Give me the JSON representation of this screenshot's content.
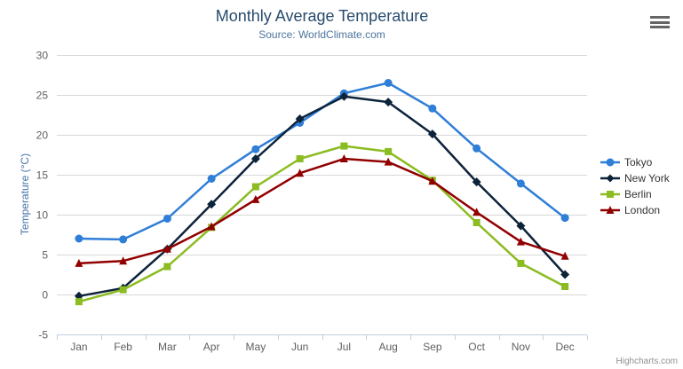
{
  "header": {
    "title": "Monthly Average Temperature",
    "subtitle": "Source: WorldClimate.com"
  },
  "credits": {
    "label": "Highcharts.com"
  },
  "icons": {
    "context_menu": "hamburger-menu-icon"
  },
  "theme": {
    "title_color": "#274b6d",
    "subtitle_color": "#4d759e",
    "axis_label_color": "#606060",
    "y_axis_title_color": "#4572a7",
    "grid_color": "#d8d8d8",
    "axis_line_color": "#c0d0e0",
    "legend_text_color": "#333333",
    "credits_color": "#909090",
    "menu_icon_color": "#666666",
    "background": "#ffffff"
  },
  "chart_data": {
    "type": "line",
    "title": "Monthly Average Temperature",
    "subtitle": "Source: WorldClimate.com",
    "xlabel": "",
    "ylabel": "Temperature (°C)",
    "categories": [
      "Jan",
      "Feb",
      "Mar",
      "Apr",
      "May",
      "Jun",
      "Jul",
      "Aug",
      "Sep",
      "Oct",
      "Nov",
      "Dec"
    ],
    "ylim": [
      -5,
      30
    ],
    "ytick_step": 5,
    "grid": true,
    "legend_position": "right",
    "series": [
      {
        "name": "Tokyo",
        "color": "#2f7ed8",
        "marker": "circle",
        "values": [
          7.0,
          6.9,
          9.5,
          14.5,
          18.2,
          21.5,
          25.2,
          26.5,
          23.3,
          18.3,
          13.9,
          9.6
        ]
      },
      {
        "name": "New York",
        "color": "#0d233a",
        "marker": "diamond",
        "values": [
          -0.2,
          0.8,
          5.7,
          11.3,
          17.0,
          22.0,
          24.8,
          24.1,
          20.1,
          14.1,
          8.6,
          2.5
        ]
      },
      {
        "name": "Berlin",
        "color": "#8bbc21",
        "marker": "square",
        "values": [
          -0.9,
          0.6,
          3.5,
          8.4,
          13.5,
          17.0,
          18.6,
          17.9,
          14.3,
          9.0,
          3.9,
          1.0
        ]
      },
      {
        "name": "London",
        "color": "#910000",
        "marker": "triangle",
        "values": [
          3.9,
          4.2,
          5.7,
          8.5,
          11.9,
          15.2,
          17.0,
          16.6,
          14.2,
          10.3,
          6.6,
          4.8
        ]
      }
    ]
  }
}
